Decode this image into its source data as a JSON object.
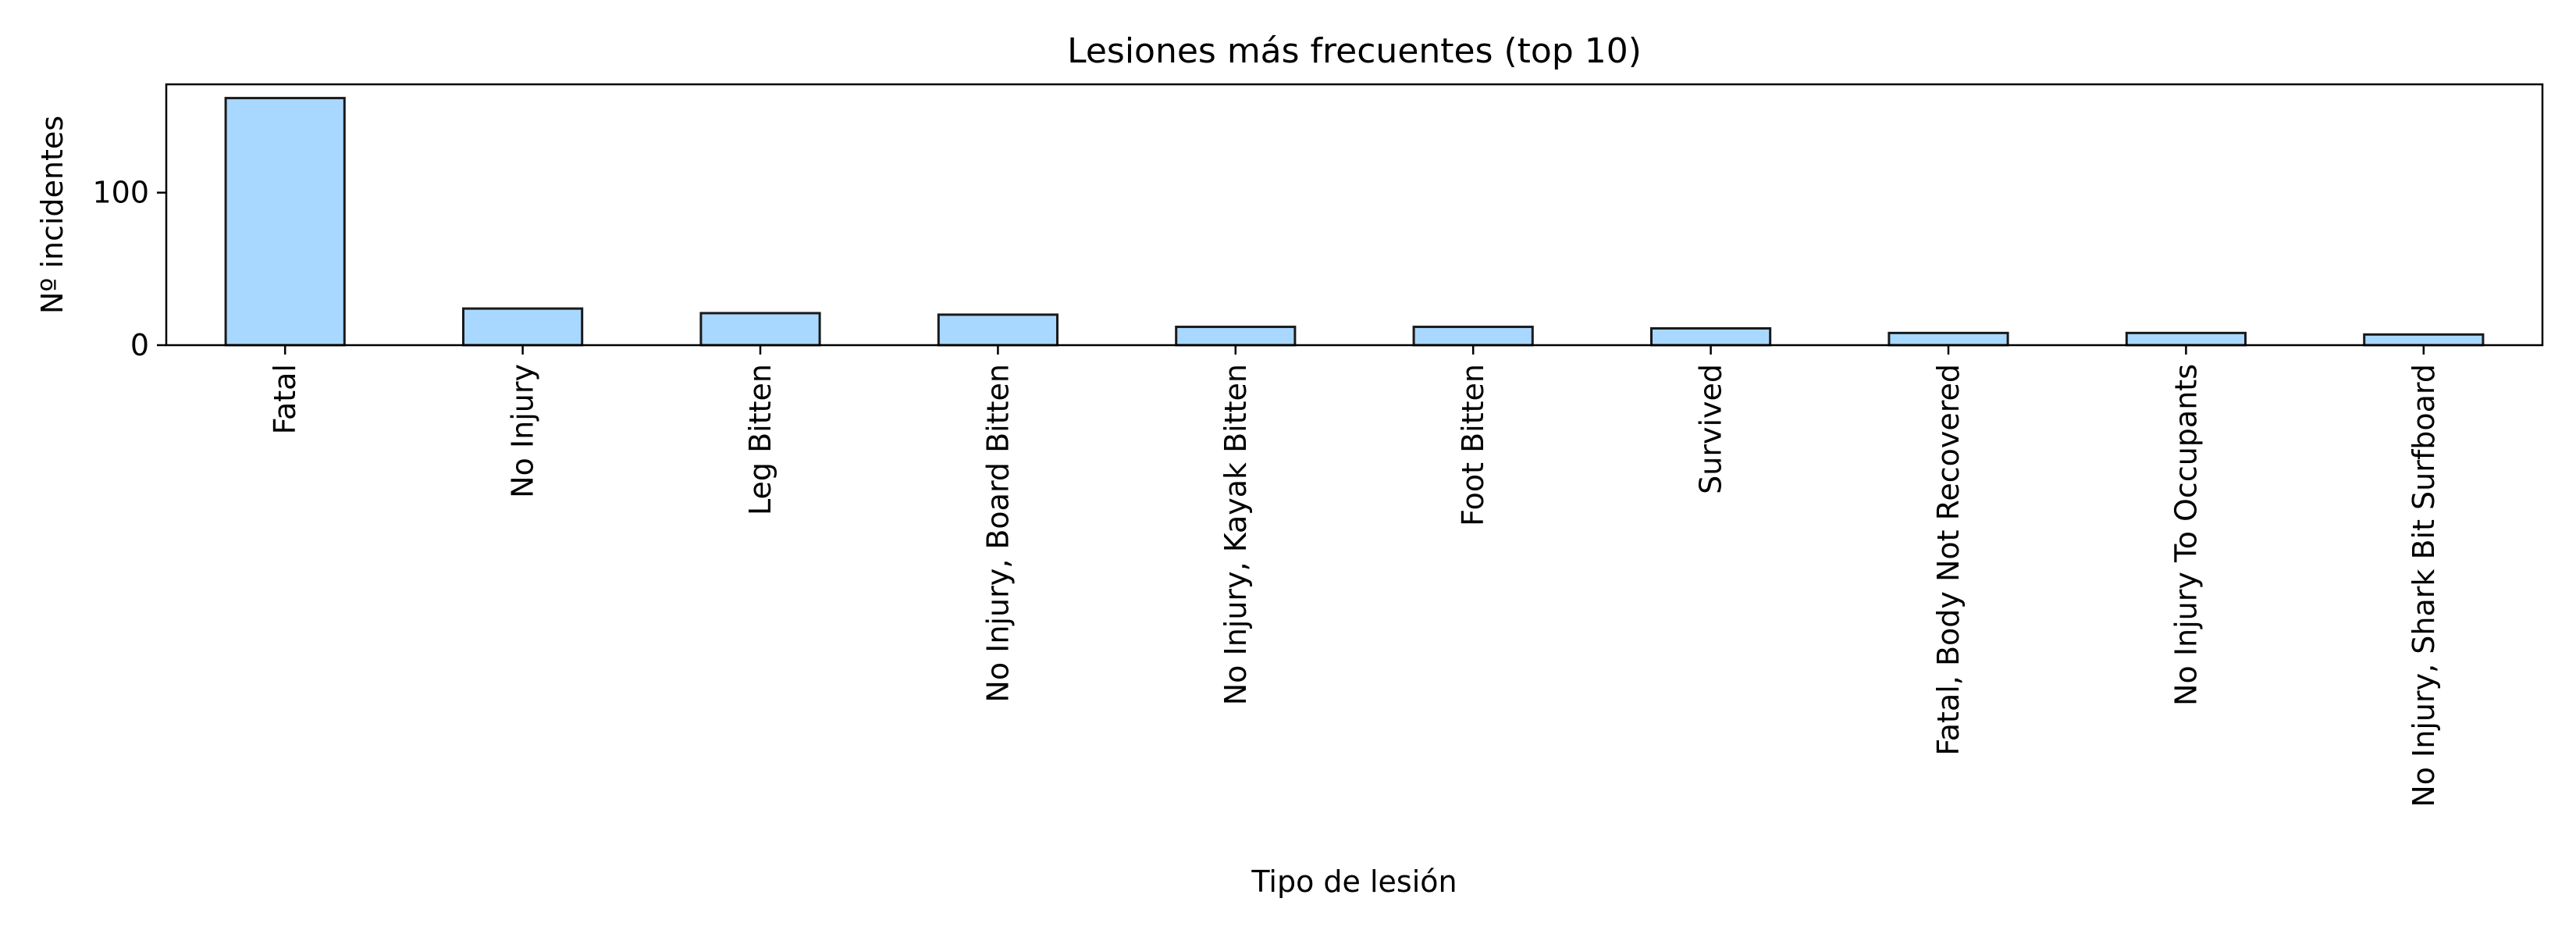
{
  "chart_data": {
    "type": "bar",
    "title": "Lesiones más frecuentes (top 10)",
    "xlabel": "Tipo de lesión",
    "ylabel": "Nº incidentes",
    "categories": [
      "Fatal",
      "No Injury",
      "Leg Bitten",
      "No Injury, Board Bitten",
      "No Injury, Kayak Bitten",
      "Foot Bitten",
      "Survived",
      "Fatal, Body Not Recovered",
      "No Injury To Occupants",
      "No Injury, Shark Bit Surfboard"
    ],
    "values": [
      162,
      24,
      21,
      20,
      12,
      12,
      11,
      8,
      8,
      7
    ],
    "ylim": [
      0,
      171
    ],
    "yticks": [
      0,
      100
    ],
    "grid": false,
    "legend": "none",
    "colors": {
      "bar_fill": "#a8d8ff",
      "bar_edge": "#1a1a1a",
      "axis": "#000000"
    }
  }
}
